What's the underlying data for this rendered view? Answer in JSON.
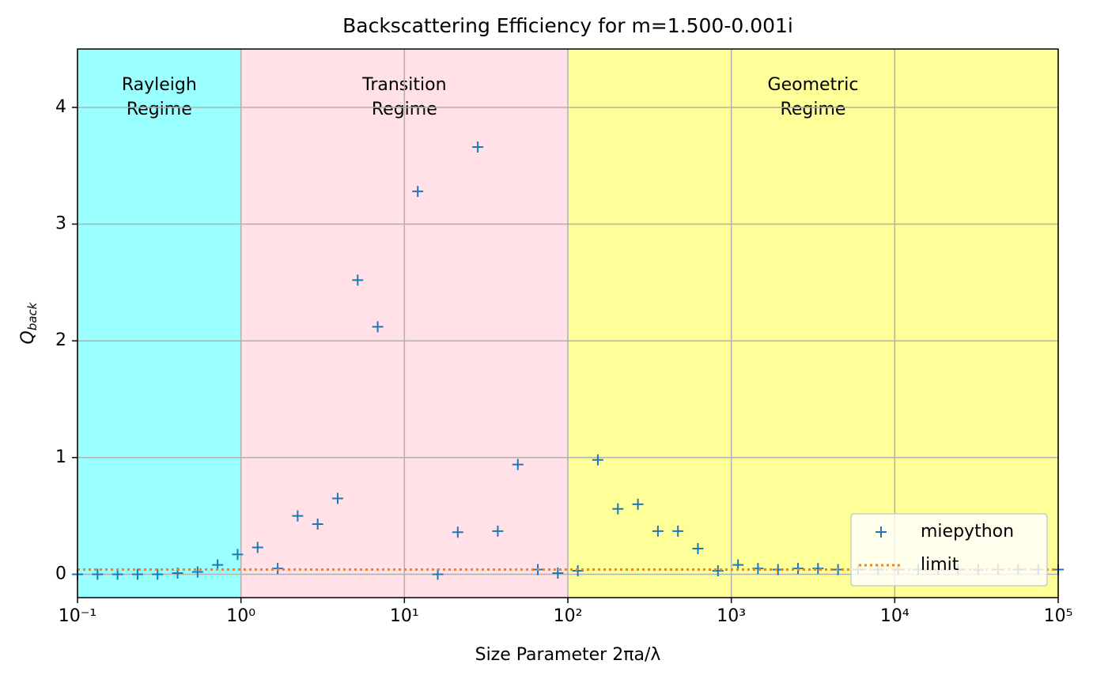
{
  "chart_data": {
    "type": "scatter",
    "title": "Backscattering Efficiency for m=1.500-0.001i",
    "xlabel": "Size Parameter 2πa/λ",
    "ylabel": "Q",
    "ylabel_sub": "back",
    "xscale": "log",
    "xlim": [
      0.1,
      100000
    ],
    "ylim": [
      -0.2,
      4.5
    ],
    "xticks": [
      {
        "value": 0.1,
        "label": "10⁻¹"
      },
      {
        "value": 1,
        "label": "10⁰"
      },
      {
        "value": 10,
        "label": "10¹"
      },
      {
        "value": 100,
        "label": "10²"
      },
      {
        "value": 1000,
        "label": "10³"
      },
      {
        "value": 10000,
        "label": "10⁴"
      },
      {
        "value": 100000,
        "label": "10⁵"
      }
    ],
    "yticks": [
      0,
      1,
      2,
      3,
      4
    ],
    "grid": true,
    "legend": "lower right",
    "regions": [
      {
        "label": [
          "Rayleigh",
          "Regime"
        ],
        "range": [
          0.1,
          1
        ],
        "color": "#99ffff"
      },
      {
        "label": [
          "Transition",
          "Regime"
        ],
        "range": [
          1,
          100
        ],
        "color": "#ffe1e7"
      },
      {
        "label": [
          "Geometric",
          "Regime"
        ],
        "range": [
          100,
          100000
        ],
        "color": "#ffff99"
      }
    ],
    "series": [
      {
        "name": "miepython",
        "color": "#1f77b4",
        "marker": "+",
        "x": [
          0.1,
          0.1326,
          0.1758,
          0.233,
          0.3089,
          0.4095,
          0.5429,
          0.7197,
          0.9541,
          1.265,
          1.677,
          2.223,
          2.947,
          3.907,
          5.179,
          6.866,
          9.103,
          12.07,
          16.0,
          21.21,
          28.12,
          37.28,
          49.42,
          65.51,
          86.85,
          115.1,
          152.6,
          202.4,
          268.3,
          355.6,
          471.5,
          625.1,
          828.6,
          1099,
          1456,
          1931,
          2560,
          3393,
          4498,
          5964,
          7906,
          10480,
          13895,
          18420,
          24421,
          32375,
          42919,
          56899,
          75431,
          100000
        ],
        "values": [
          0.0,
          0.0,
          0.0,
          0.0,
          0.0,
          0.01,
          0.02,
          0.08,
          0.17,
          0.23,
          0.05,
          0.5,
          0.43,
          0.65,
          2.52,
          2.12,
          null,
          3.28,
          0.0,
          0.36,
          3.66,
          0.37,
          0.94,
          0.04,
          0.01,
          0.03,
          0.98,
          0.56,
          0.6,
          0.37,
          0.37,
          0.22,
          0.03,
          0.08,
          0.05,
          0.04,
          0.05,
          0.05,
          0.04,
          0.04,
          0.04,
          0.04,
          0.04,
          0.04,
          0.04,
          0.04,
          0.04,
          0.04,
          0.04,
          0.04
        ]
      },
      {
        "name": "limit",
        "color": "#ff7f0e",
        "line": "dotted",
        "value": 0.04
      }
    ]
  }
}
